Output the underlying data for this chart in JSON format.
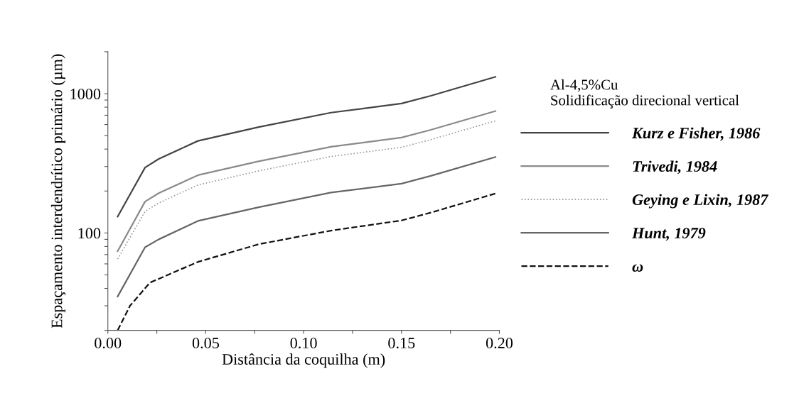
{
  "chart_data": {
    "type": "line",
    "xlabel": "Distância da coquilha (m)",
    "ylabel": "Espaçamento interdendrítico primário (µm)",
    "legend_title": "Al-4,5%Cu\nSolidificação direcional vertical",
    "log": "y",
    "xlim": [
      0,
      0.2
    ],
    "ylim": [
      20,
      2000
    ],
    "xticks": [
      {
        "value": 0,
        "label": "0.00"
      },
      {
        "value": 0.025,
        "label": null
      },
      {
        "value": 0.05,
        "label": "0.05"
      },
      {
        "value": 0.075,
        "label": null
      },
      {
        "value": 0.1,
        "label": "0.10"
      },
      {
        "value": 0.125,
        "label": null
      },
      {
        "value": 0.15,
        "label": "0.15"
      },
      {
        "value": 0.175,
        "label": null
      },
      {
        "value": 0.2,
        "label": "0.20"
      }
    ],
    "yticks": [
      {
        "value": 20,
        "label": null
      },
      {
        "value": 30,
        "label": null
      },
      {
        "value": 40,
        "label": null
      },
      {
        "value": 50,
        "label": null
      },
      {
        "value": 60,
        "label": null
      },
      {
        "value": 70,
        "label": null
      },
      {
        "value": 80,
        "label": null
      },
      {
        "value": 90,
        "label": null
      },
      100,
      {
        "value": 200,
        "label": null
      },
      {
        "value": 300,
        "label": null
      },
      {
        "value": 400,
        "label": null
      },
      {
        "value": 500,
        "label": null
      },
      {
        "value": 600,
        "label": null
      },
      {
        "value": 700,
        "label": null
      },
      {
        "value": 800,
        "label": null
      },
      {
        "value": 900,
        "label": null
      },
      1000,
      {
        "value": 2000,
        "label": null
      }
    ],
    "grid": false,
    "legend": "right",
    "marker": "none",
    "x": [
      0.005,
      0.019,
      0.026,
      0.046,
      0.077,
      0.114,
      0.15,
      0.165,
      0.198
    ],
    "series": [
      {
        "name": "Kurz e Fisher, 1986",
        "color": "#444444",
        "line_style": "solid",
        "values": [
          131,
          295,
          340,
          458,
          576,
          731,
          850,
          966,
          1320
        ]
      },
      {
        "name": "Trivedi, 1984",
        "color": "#8a8a8a",
        "line_style": "solid",
        "values": [
          74,
          168,
          193,
          260,
          327,
          416,
          484,
          550,
          750
        ]
      },
      {
        "name": "Geying e Lixin, 1987",
        "color": "#9a9a9a",
        "line_style": "dotted",
        "values": [
          65,
          143,
          164,
          221,
          279,
          354,
          412,
          468,
          638
        ]
      },
      {
        "name": "Hunt, 1979",
        "color": "#666666",
        "line_style": "solid",
        "values": [
          35,
          79,
          90,
          122,
          153,
          195,
          226,
          257,
          351
        ]
      },
      {
        "name": "ω",
        "color": "#111111",
        "line_style": "dashed",
        "x": [
          0.005,
          0.0113,
          0.0215,
          0.046,
          0.077,
          0.114,
          0.15,
          0.165,
          0.198
        ],
        "values": [
          20,
          30,
          44,
          62,
          83,
          104,
          123,
          140,
          192
        ]
      }
    ]
  }
}
